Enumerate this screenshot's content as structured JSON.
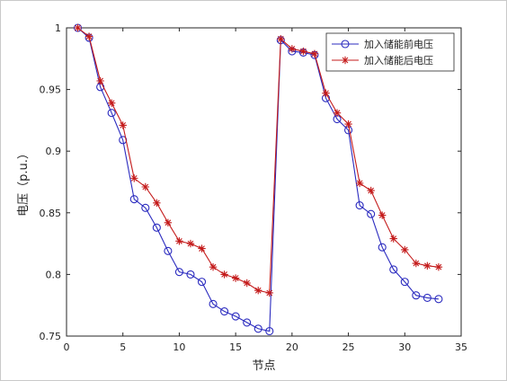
{
  "chart_data": {
    "type": "line",
    "title": "",
    "xlabel": "节点",
    "ylabel": "电压（p.u.）",
    "xlim": [
      0,
      35
    ],
    "ylim": [
      0.75,
      1.0
    ],
    "xticks": [
      0,
      5,
      10,
      15,
      20,
      25,
      30,
      35
    ],
    "yticks": [
      0.75,
      0.8,
      0.85,
      0.9,
      0.95,
      1.0
    ],
    "xtick_labels": [
      "0",
      "5",
      "10",
      "15",
      "20",
      "25",
      "30",
      "35"
    ],
    "ytick_labels": [
      "0.75",
      "0.8",
      "0.85",
      "0.9",
      "0.95",
      "1"
    ],
    "grid": false,
    "legend_position": "top-right",
    "x": [
      1,
      2,
      3,
      4,
      5,
      6,
      7,
      8,
      9,
      10,
      11,
      12,
      13,
      14,
      15,
      16,
      17,
      18,
      19,
      20,
      21,
      22,
      23,
      24,
      25,
      26,
      27,
      28,
      29,
      30,
      31,
      32,
      33
    ],
    "series": [
      {
        "name": "加入储能前电压",
        "color": "#2b2bbf",
        "marker": "circle",
        "values": [
          1.0,
          0.992,
          0.952,
          0.931,
          0.909,
          0.861,
          0.854,
          0.838,
          0.819,
          0.802,
          0.8,
          0.794,
          0.776,
          0.77,
          0.766,
          0.761,
          0.756,
          0.754,
          0.99,
          0.981,
          0.98,
          0.978,
          0.943,
          0.926,
          0.917,
          0.856,
          0.849,
          0.822,
          0.804,
          0.794,
          0.783,
          0.781,
          0.78
        ]
      },
      {
        "name": "加入储能后电压",
        "color": "#c41b1b",
        "marker": "star",
        "values": [
          1.0,
          0.993,
          0.957,
          0.939,
          0.921,
          0.878,
          0.871,
          0.858,
          0.842,
          0.827,
          0.825,
          0.821,
          0.806,
          0.8,
          0.797,
          0.793,
          0.787,
          0.785,
          0.991,
          0.983,
          0.981,
          0.979,
          0.947,
          0.931,
          0.922,
          0.874,
          0.868,
          0.848,
          0.829,
          0.82,
          0.809,
          0.807,
          0.806
        ]
      }
    ]
  }
}
